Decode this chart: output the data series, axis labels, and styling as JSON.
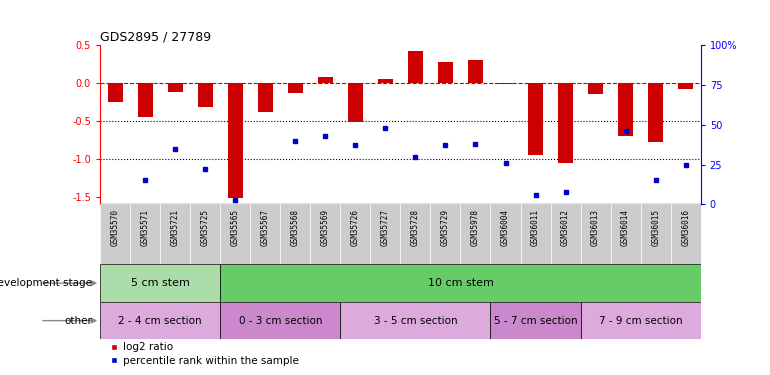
{
  "title": "GDS2895 / 27789",
  "samples": [
    "GSM35570",
    "GSM35571",
    "GSM35721",
    "GSM35725",
    "GSM35565",
    "GSM35567",
    "GSM35568",
    "GSM35569",
    "GSM35726",
    "GSM35727",
    "GSM35728",
    "GSM35729",
    "GSM35978",
    "GSM36004",
    "GSM36011",
    "GSM36012",
    "GSM36013",
    "GSM36014",
    "GSM36015",
    "GSM36016"
  ],
  "log2_ratio": [
    -0.25,
    -0.45,
    -0.12,
    -0.32,
    -1.52,
    -0.38,
    -0.13,
    0.08,
    -0.52,
    0.05,
    0.42,
    0.27,
    0.3,
    -0.02,
    -0.95,
    -1.05,
    -0.15,
    -0.7,
    -0.78,
    -0.08
  ],
  "percentile_rank": [
    null,
    15,
    35,
    22,
    3,
    null,
    40,
    43,
    37,
    48,
    30,
    37,
    38,
    26,
    6,
    8,
    null,
    46,
    15,
    25
  ],
  "ylim_left": [
    -1.6,
    0.5
  ],
  "ylim_right": [
    0,
    100
  ],
  "yticks_left": [
    -1.5,
    -1.0,
    -0.5,
    0.0,
    0.5
  ],
  "yticks_right": [
    0,
    25,
    50,
    75,
    100
  ],
  "ytick_labels_right": [
    "0",
    "25",
    "50",
    "75",
    "100%"
  ],
  "bar_color": "#cc0000",
  "dot_color": "#0000cc",
  "gray_bg": "#cccccc",
  "dev_stage_groups": [
    {
      "label": "5 cm stem",
      "start": 0,
      "end": 4,
      "color": "#aaddaa"
    },
    {
      "label": "10 cm stem",
      "start": 4,
      "end": 20,
      "color": "#66cc66"
    }
  ],
  "other_groups": [
    {
      "label": "2 - 4 cm section",
      "start": 0,
      "end": 4,
      "color": "#ddaadd"
    },
    {
      "label": "0 - 3 cm section",
      "start": 4,
      "end": 8,
      "color": "#cc88cc"
    },
    {
      "label": "3 - 5 cm section",
      "start": 8,
      "end": 13,
      "color": "#ddaadd"
    },
    {
      "label": "5 - 7 cm section",
      "start": 13,
      "end": 16,
      "color": "#cc88cc"
    },
    {
      "label": "7 - 9 cm section",
      "start": 16,
      "end": 20,
      "color": "#ddaadd"
    }
  ],
  "legend_red_label": "log2 ratio",
  "legend_blue_label": "percentile rank within the sample"
}
